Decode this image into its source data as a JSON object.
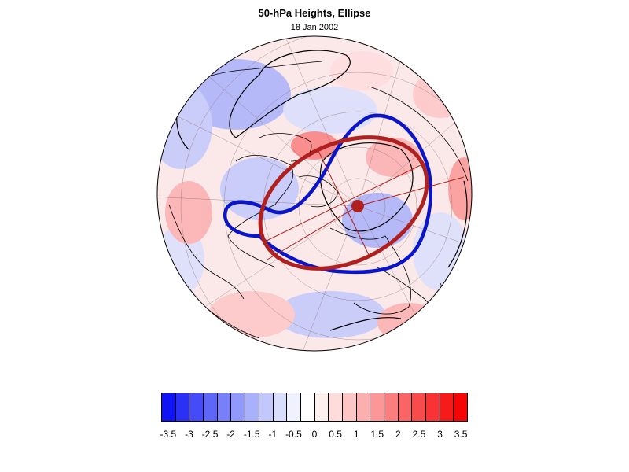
{
  "title": "50-hPa Heights, Ellipse",
  "subtitle": "18 Jan 2002",
  "map": {
    "projection": "polar-stereographic",
    "hemisphere": "northern",
    "field": "50-hPa height anomaly",
    "overlays": [
      "height contours (black)",
      "polar vortex edge (blue)",
      "fitted ellipse (dark red)",
      "ellipse center marker",
      "ellipse axes"
    ],
    "colors": {
      "ellipse": "#b0201e",
      "vortex_edge": "#0a14c8",
      "contour": "#000000",
      "coastline": "#000000"
    }
  },
  "colorbar": {
    "colors": [
      "#0f14f5",
      "#2a30f6",
      "#444bf7",
      "#5e66f8",
      "#7880f9",
      "#9199fa",
      "#aab1fb",
      "#c2c8fc",
      "#dadefd",
      "#eff1fe",
      "#ffffff",
      "#fff0f0",
      "#fedcdc",
      "#fdc6c6",
      "#fcafaf",
      "#fb9797",
      "#fa7e7e",
      "#f96565",
      "#f84c4c",
      "#f73333",
      "#f61a1a",
      "#f50505"
    ],
    "labels": [
      "-3.5",
      "-3",
      "-2.5",
      "-2",
      "-1.5",
      "-1",
      "-0.5",
      "0",
      "0.5",
      "1",
      "1.5",
      "2",
      "2.5",
      "3",
      "3.5"
    ]
  }
}
